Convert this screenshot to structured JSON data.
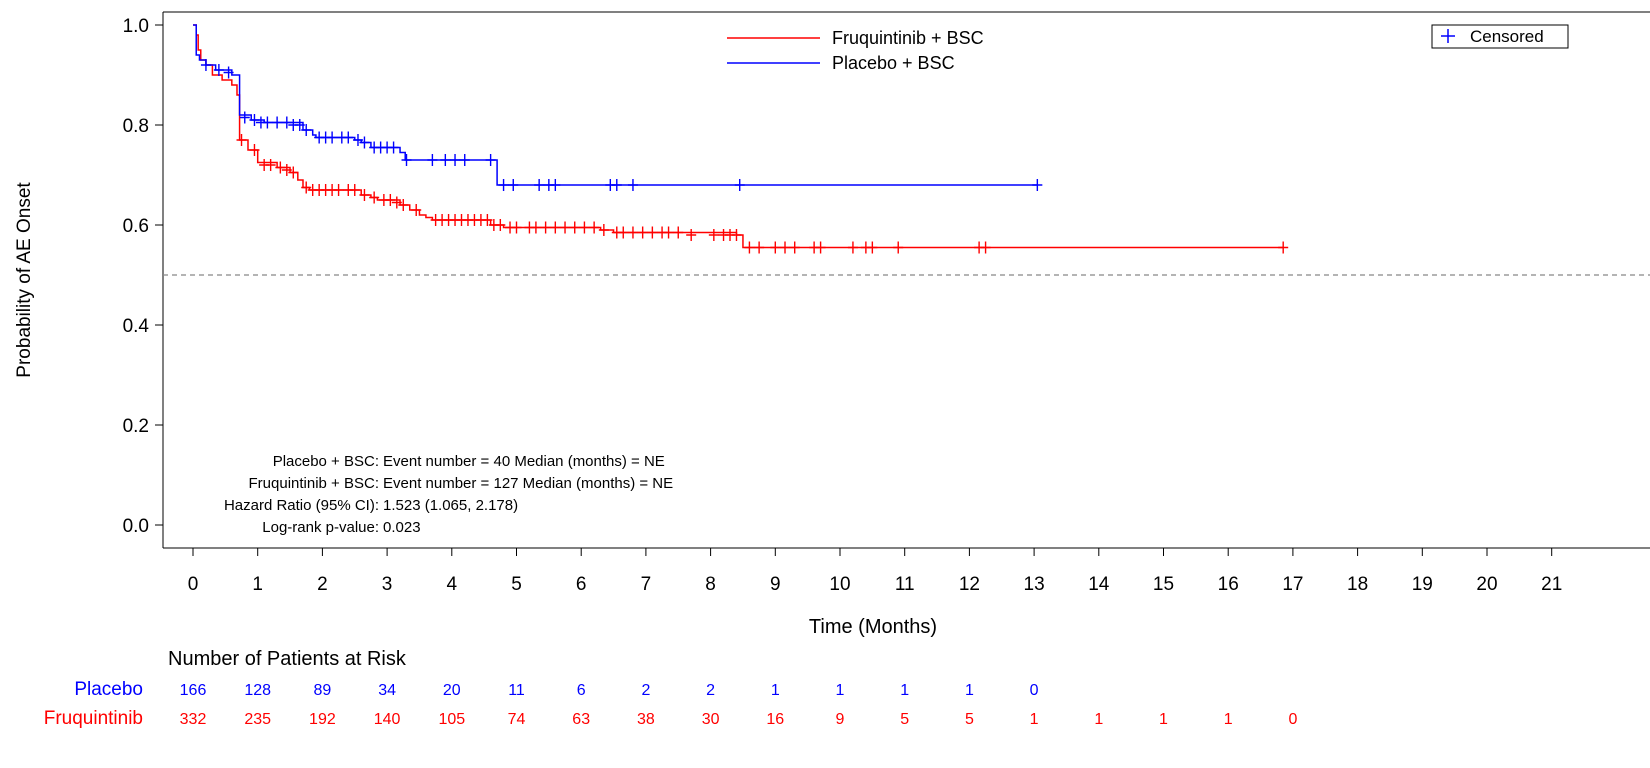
{
  "chart_data": {
    "type": "line",
    "subtype": "kaplan-meier",
    "title": "",
    "xlabel": "Time (Months)",
    "ylabel": "Probability of AE Onset",
    "xlim": [
      0,
      21
    ],
    "ylim": [
      0.0,
      1.0
    ],
    "x_ticks": [
      0,
      1,
      2,
      3,
      4,
      5,
      6,
      7,
      8,
      9,
      10,
      11,
      12,
      13,
      14,
      15,
      16,
      17,
      18,
      19,
      20,
      21
    ],
    "y_ticks": [
      0.0,
      0.2,
      0.4,
      0.6,
      0.8,
      1.0
    ],
    "y_tick_labels": [
      "0.0",
      "0.2",
      "0.4",
      "0.6",
      "0.8",
      "1.0"
    ],
    "reference_line_y": 0.5,
    "grid": false,
    "legend_position": "top-center",
    "censor_legend_label": "Censored",
    "series": [
      {
        "name": "Fruquintinib + BSC",
        "color": "#ff0000",
        "steps": [
          [
            0,
            1.0
          ],
          [
            0.05,
            0.98
          ],
          [
            0.08,
            0.95
          ],
          [
            0.12,
            0.93
          ],
          [
            0.2,
            0.92
          ],
          [
            0.3,
            0.9
          ],
          [
            0.45,
            0.89
          ],
          [
            0.6,
            0.88
          ],
          [
            0.68,
            0.86
          ],
          [
            0.72,
            0.77
          ],
          [
            0.85,
            0.75
          ],
          [
            1.0,
            0.725
          ],
          [
            1.3,
            0.715
          ],
          [
            1.5,
            0.705
          ],
          [
            1.62,
            0.69
          ],
          [
            1.7,
            0.675
          ],
          [
            1.8,
            0.67
          ],
          [
            2.6,
            0.66
          ],
          [
            2.75,
            0.655
          ],
          [
            2.85,
            0.65
          ],
          [
            3.2,
            0.64
          ],
          [
            3.35,
            0.63
          ],
          [
            3.5,
            0.62
          ],
          [
            3.6,
            0.615
          ],
          [
            3.7,
            0.61
          ],
          [
            4.6,
            0.6
          ],
          [
            4.8,
            0.595
          ],
          [
            6.3,
            0.59
          ],
          [
            6.5,
            0.585
          ],
          [
            8.4,
            0.58
          ],
          [
            8.5,
            0.555
          ],
          [
            16.85,
            0.555
          ]
        ],
        "censored": [
          [
            0.75,
            0.77
          ],
          [
            0.95,
            0.75
          ],
          [
            1.1,
            0.72
          ],
          [
            1.2,
            0.72
          ],
          [
            1.35,
            0.715
          ],
          [
            1.45,
            0.71
          ],
          [
            1.55,
            0.705
          ],
          [
            1.75,
            0.675
          ],
          [
            1.85,
            0.67
          ],
          [
            1.95,
            0.67
          ],
          [
            2.05,
            0.67
          ],
          [
            2.15,
            0.67
          ],
          [
            2.25,
            0.67
          ],
          [
            2.4,
            0.67
          ],
          [
            2.5,
            0.67
          ],
          [
            2.65,
            0.66
          ],
          [
            2.8,
            0.655
          ],
          [
            2.95,
            0.65
          ],
          [
            3.05,
            0.65
          ],
          [
            3.15,
            0.645
          ],
          [
            3.25,
            0.64
          ],
          [
            3.45,
            0.63
          ],
          [
            3.75,
            0.61
          ],
          [
            3.85,
            0.61
          ],
          [
            3.95,
            0.61
          ],
          [
            4.05,
            0.61
          ],
          [
            4.15,
            0.61
          ],
          [
            4.25,
            0.61
          ],
          [
            4.35,
            0.61
          ],
          [
            4.45,
            0.61
          ],
          [
            4.55,
            0.61
          ],
          [
            4.65,
            0.6
          ],
          [
            4.75,
            0.6
          ],
          [
            4.9,
            0.595
          ],
          [
            5.0,
            0.595
          ],
          [
            5.2,
            0.595
          ],
          [
            5.3,
            0.595
          ],
          [
            5.45,
            0.595
          ],
          [
            5.6,
            0.595
          ],
          [
            5.75,
            0.595
          ],
          [
            5.9,
            0.595
          ],
          [
            6.05,
            0.595
          ],
          [
            6.2,
            0.595
          ],
          [
            6.35,
            0.59
          ],
          [
            6.55,
            0.585
          ],
          [
            6.65,
            0.585
          ],
          [
            6.8,
            0.585
          ],
          [
            6.95,
            0.585
          ],
          [
            7.1,
            0.585
          ],
          [
            7.25,
            0.585
          ],
          [
            7.35,
            0.585
          ],
          [
            7.5,
            0.585
          ],
          [
            7.7,
            0.58
          ],
          [
            8.05,
            0.58
          ],
          [
            8.2,
            0.58
          ],
          [
            8.3,
            0.58
          ],
          [
            8.4,
            0.58
          ],
          [
            8.6,
            0.555
          ],
          [
            8.75,
            0.555
          ],
          [
            9.0,
            0.555
          ],
          [
            9.15,
            0.555
          ],
          [
            9.3,
            0.555
          ],
          [
            9.6,
            0.555
          ],
          [
            9.7,
            0.555
          ],
          [
            10.2,
            0.555
          ],
          [
            10.4,
            0.555
          ],
          [
            10.5,
            0.555
          ],
          [
            10.9,
            0.555
          ],
          [
            12.15,
            0.555
          ],
          [
            12.25,
            0.555
          ],
          [
            16.85,
            0.555
          ]
        ]
      },
      {
        "name": "Placebo + BSC",
        "color": "#0000ff",
        "steps": [
          [
            0,
            1.0
          ],
          [
            0.05,
            0.94
          ],
          [
            0.1,
            0.93
          ],
          [
            0.2,
            0.92
          ],
          [
            0.35,
            0.91
          ],
          [
            0.6,
            0.9
          ],
          [
            0.72,
            0.82
          ],
          [
            0.9,
            0.81
          ],
          [
            1.1,
            0.805
          ],
          [
            1.7,
            0.79
          ],
          [
            1.85,
            0.78
          ],
          [
            1.9,
            0.775
          ],
          [
            2.5,
            0.77
          ],
          [
            2.6,
            0.765
          ],
          [
            2.75,
            0.755
          ],
          [
            3.2,
            0.745
          ],
          [
            3.28,
            0.73
          ],
          [
            4.65,
            0.73
          ],
          [
            4.7,
            0.68
          ],
          [
            13.05,
            0.68
          ]
        ],
        "censored": [
          [
            0.2,
            0.92
          ],
          [
            0.4,
            0.91
          ],
          [
            0.55,
            0.905
          ],
          [
            0.8,
            0.815
          ],
          [
            0.95,
            0.81
          ],
          [
            1.05,
            0.805
          ],
          [
            1.15,
            0.805
          ],
          [
            1.3,
            0.805
          ],
          [
            1.45,
            0.805
          ],
          [
            1.55,
            0.8
          ],
          [
            1.65,
            0.8
          ],
          [
            1.75,
            0.79
          ],
          [
            1.95,
            0.775
          ],
          [
            2.05,
            0.775
          ],
          [
            2.15,
            0.775
          ],
          [
            2.3,
            0.775
          ],
          [
            2.4,
            0.775
          ],
          [
            2.55,
            0.77
          ],
          [
            2.65,
            0.765
          ],
          [
            2.8,
            0.755
          ],
          [
            2.9,
            0.755
          ],
          [
            3.0,
            0.755
          ],
          [
            3.1,
            0.755
          ],
          [
            3.3,
            0.73
          ],
          [
            3.7,
            0.73
          ],
          [
            3.9,
            0.73
          ],
          [
            4.05,
            0.73
          ],
          [
            4.2,
            0.73
          ],
          [
            4.6,
            0.73
          ],
          [
            4.8,
            0.68
          ],
          [
            4.95,
            0.68
          ],
          [
            5.35,
            0.68
          ],
          [
            5.5,
            0.68
          ],
          [
            5.6,
            0.68
          ],
          [
            6.45,
            0.68
          ],
          [
            6.55,
            0.68
          ],
          [
            6.8,
            0.68
          ],
          [
            8.45,
            0.68
          ],
          [
            13.05,
            0.68
          ]
        ]
      }
    ],
    "annotations": [
      {
        "label": "Placebo + BSC:",
        "value": "Event number = 40  Median (months) = NE"
      },
      {
        "label": "Fruquintinib + BSC:",
        "value": "Event number = 127  Median (months) = NE"
      },
      {
        "label": "Hazard Ratio (95% CI):",
        "value": "1.523 (1.065, 2.178)"
      },
      {
        "label": "Log-rank p-value:",
        "value": "0.023"
      }
    ],
    "risk_table": {
      "title": "Number of Patients at Risk",
      "rows": [
        {
          "label": "Placebo",
          "color": "#0000ff",
          "values": [
            166,
            128,
            89,
            34,
            20,
            11,
            6,
            2,
            2,
            1,
            1,
            1,
            1,
            0
          ]
        },
        {
          "label": "Fruquintinib",
          "color": "#ff0000",
          "values": [
            332,
            235,
            192,
            140,
            105,
            74,
            63,
            38,
            30,
            16,
            9,
            5,
            5,
            1,
            1,
            1,
            1,
            0
          ]
        }
      ]
    }
  }
}
